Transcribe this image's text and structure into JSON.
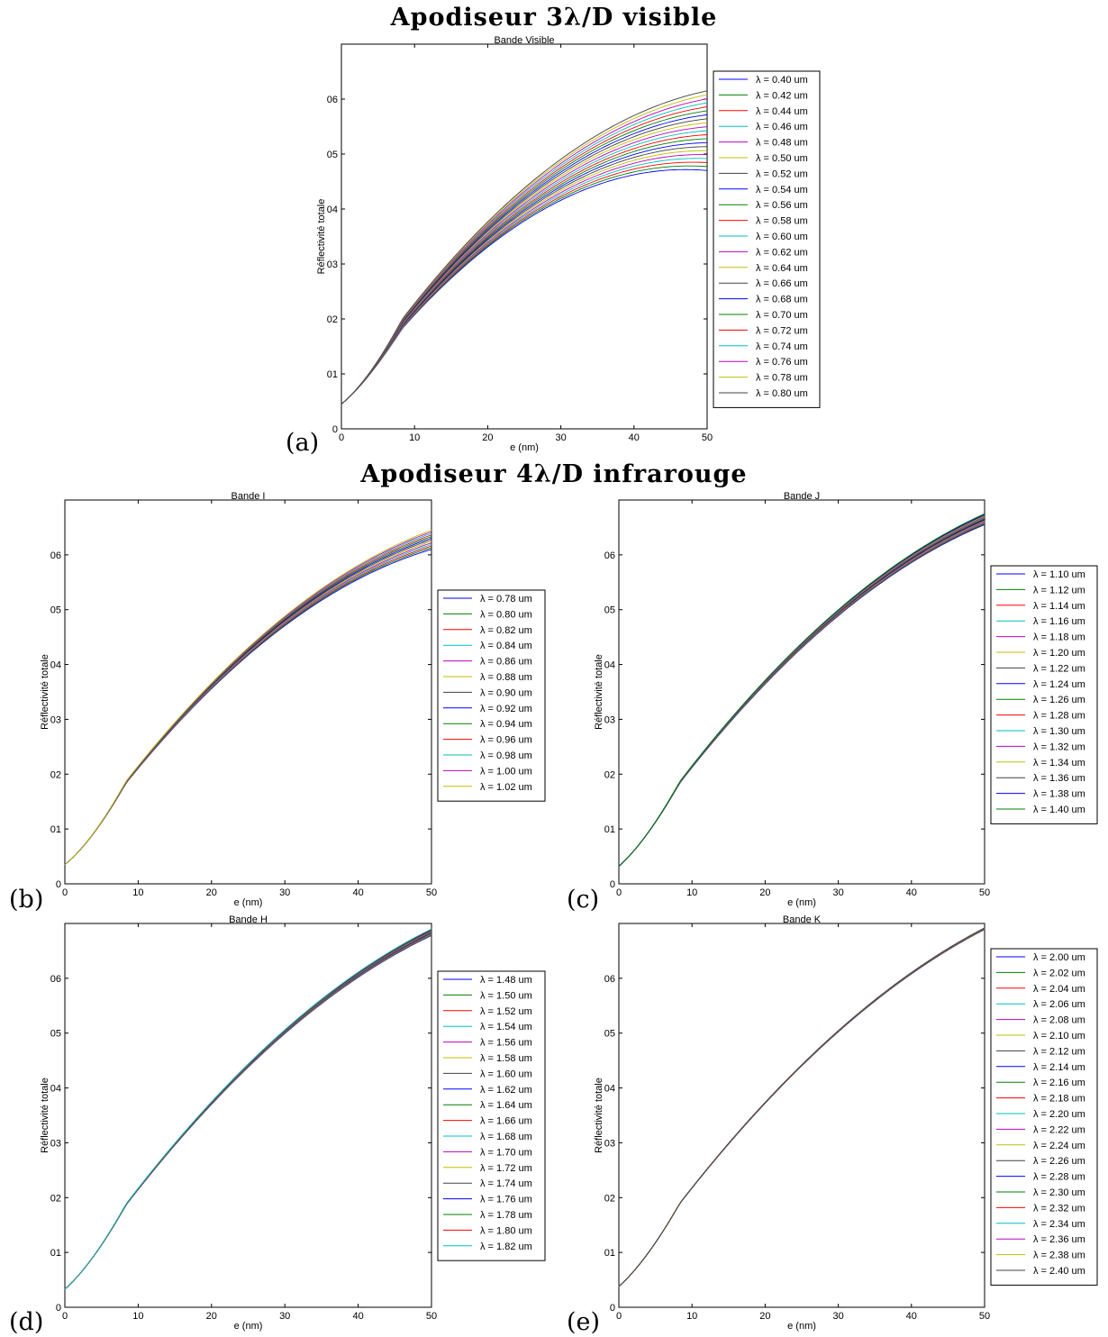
{
  "headings": {
    "visible": "Apodiseur 3λ/D visible",
    "infrared": "Apodiseur 4λ/D infrarouge"
  },
  "panel_letters": [
    "(a)",
    "(b)",
    "(c)",
    "(d)",
    "(e)"
  ],
  "chart_data": [
    {
      "id": "a",
      "type": "line",
      "title": "Bande Visible",
      "xlabel": "e (nm)",
      "ylabel": "Réflectivité totale",
      "xlim": [
        0,
        50
      ],
      "ylim": [
        0,
        0.07
      ],
      "xticks": [
        0,
        10,
        20,
        30,
        40,
        50
      ],
      "yticks": [
        0,
        0.01,
        0.02,
        0.03,
        0.04,
        0.05,
        0.06
      ],
      "ytick_labels": [
        "0",
        "01",
        "02",
        "03",
        "04",
        "05",
        "06"
      ],
      "legend": "right-outside",
      "curve_model": {
        "start": 0.0045,
        "start_slope": 0.0011,
        "end_min": 0.047,
        "end_max": 0.0615,
        "peak_x_min": 47,
        "peak_x_max": 58
      },
      "series_names": [
        "λ = 0.40 um",
        "λ = 0.42 um",
        "λ = 0.44 um",
        "λ = 0.46 um",
        "λ = 0.48 um",
        "λ = 0.50 um",
        "λ = 0.52 um",
        "λ = 0.54 um",
        "λ = 0.56 um",
        "λ = 0.58 um",
        "λ = 0.60 um",
        "λ = 0.62 um",
        "λ = 0.64 um",
        "λ = 0.66 um",
        "λ = 0.68 um",
        "λ = 0.70 um",
        "λ = 0.72 um",
        "λ = 0.74 um",
        "λ = 0.76 um",
        "λ = 0.78 um",
        "λ = 0.80 um"
      ]
    },
    {
      "id": "b",
      "type": "line",
      "title": "Bande I",
      "xlabel": "e (nm)",
      "ylabel": "Réflectivité totale",
      "xlim": [
        0,
        50
      ],
      "ylim": [
        0,
        0.07
      ],
      "xticks": [
        0,
        10,
        20,
        30,
        40,
        50
      ],
      "yticks": [
        0,
        0.01,
        0.02,
        0.03,
        0.04,
        0.05,
        0.06
      ],
      "ytick_labels": [
        "0",
        "01",
        "02",
        "03",
        "04",
        "05",
        "06"
      ],
      "legend": "right-outside",
      "curve_model": {
        "start": 0.0035,
        "start_slope": 0.0011,
        "end_min": 0.061,
        "end_max": 0.0645,
        "peak_x_min": 63,
        "peak_x_max": 67
      },
      "series_names": [
        "λ = 0.78 um",
        "λ = 0.80 um",
        "λ = 0.82 um",
        "λ = 0.84 um",
        "λ = 0.86 um",
        "λ = 0.88 um",
        "λ = 0.90 um",
        "λ = 0.92 um",
        "λ = 0.94 um",
        "λ = 0.96 um",
        "λ = 0.98 um",
        "λ = 1.00 um",
        "λ = 1.02 um"
      ]
    },
    {
      "id": "c",
      "type": "line",
      "title": "Bande J",
      "xlabel": "e (nm)",
      "ylabel": "Réflectivité totale",
      "xlim": [
        0,
        50
      ],
      "ylim": [
        0,
        0.07
      ],
      "xticks": [
        0,
        10,
        20,
        30,
        40,
        50
      ],
      "yticks": [
        0,
        0.01,
        0.02,
        0.03,
        0.04,
        0.05,
        0.06
      ],
      "ytick_labels": [
        "0",
        "01",
        "02",
        "03",
        "04",
        "05",
        "06"
      ],
      "legend": "right-outside",
      "curve_model": {
        "start": 0.0032,
        "start_slope": 0.0012,
        "end_min": 0.0655,
        "end_max": 0.0675,
        "peak_x_min": 70,
        "peak_x_max": 72
      },
      "series_names": [
        "λ = 1.10 um",
        "λ = 1.12 um",
        "λ = 1.14 um",
        "λ = 1.16 um",
        "λ = 1.18 um",
        "λ = 1.20 um",
        "λ = 1.22 um",
        "λ = 1.24 um",
        "λ = 1.26 um",
        "λ = 1.28 um",
        "λ = 1.30 um",
        "λ = 1.32 um",
        "λ = 1.34 um",
        "λ = 1.36 um",
        "λ = 1.38 um",
        "λ = 1.40 um"
      ]
    },
    {
      "id": "d",
      "type": "line",
      "title": "Bande H",
      "xlabel": "e (nm)",
      "ylabel": "Réflectivité totale",
      "xlim": [
        0,
        50
      ],
      "ylim": [
        0,
        0.07
      ],
      "xticks": [
        0,
        10,
        20,
        30,
        40,
        50
      ],
      "yticks": [
        0,
        0.01,
        0.02,
        0.03,
        0.04,
        0.05,
        0.06
      ],
      "ytick_labels": [
        "0",
        "01",
        "02",
        "03",
        "04",
        "05",
        "06"
      ],
      "legend": "right-outside",
      "curve_model": {
        "start": 0.0033,
        "start_slope": 0.0012,
        "end_min": 0.0678,
        "end_max": 0.069,
        "peak_x_min": 74,
        "peak_x_max": 75
      },
      "series_names": [
        "λ = 1.48 um",
        "λ = 1.50 um",
        "λ = 1.52 um",
        "λ = 1.54 um",
        "λ = 1.56 um",
        "λ = 1.58 um",
        "λ = 1.60 um",
        "λ = 1.62 um",
        "λ = 1.64 um",
        "λ = 1.66 um",
        "λ = 1.68 um",
        "λ = 1.70 um",
        "λ = 1.72 um",
        "λ = 1.74 um",
        "λ = 1.76 um",
        "λ = 1.78 um",
        "λ = 1.80 um",
        "λ = 1.82 um"
      ]
    },
    {
      "id": "e",
      "type": "line",
      "title": "Bande K",
      "xlabel": "e (nm)",
      "ylabel": "Réflectivité totale",
      "xlim": [
        0,
        50
      ],
      "ylim": [
        0,
        0.07
      ],
      "xticks": [
        0,
        10,
        20,
        30,
        40,
        50
      ],
      "yticks": [
        0,
        0.01,
        0.02,
        0.03,
        0.04,
        0.05,
        0.06
      ],
      "ytick_labels": [
        "0",
        "01",
        "02",
        "03",
        "04",
        "05",
        "06"
      ],
      "legend": "right-outside",
      "curve_model": {
        "start": 0.0038,
        "start_slope": 0.0012,
        "end_min": 0.0689,
        "end_max": 0.0692,
        "peak_x_min": 78,
        "peak_x_max": 78
      },
      "series_names": [
        "λ = 2.00 um",
        "λ = 2.02 um",
        "λ = 2.04 um",
        "λ = 2.06 um",
        "λ = 2.08 um",
        "λ = 2.10 um",
        "λ = 2.12 um",
        "λ = 2.14 um",
        "λ = 2.16 um",
        "λ = 2.18 um",
        "λ = 2.20 um",
        "λ = 2.22 um",
        "λ = 2.24 um",
        "λ = 2.26 um",
        "λ = 2.28 um",
        "λ = 2.30 um",
        "λ = 2.32 um",
        "λ = 2.34 um",
        "λ = 2.36 um",
        "λ = 2.38 um",
        "λ = 2.40 um"
      ]
    }
  ],
  "palette": [
    "#0000ff",
    "#008000",
    "#ff0000",
    "#00bfbf",
    "#bf00bf",
    "#bfbf00",
    "#404040"
  ]
}
